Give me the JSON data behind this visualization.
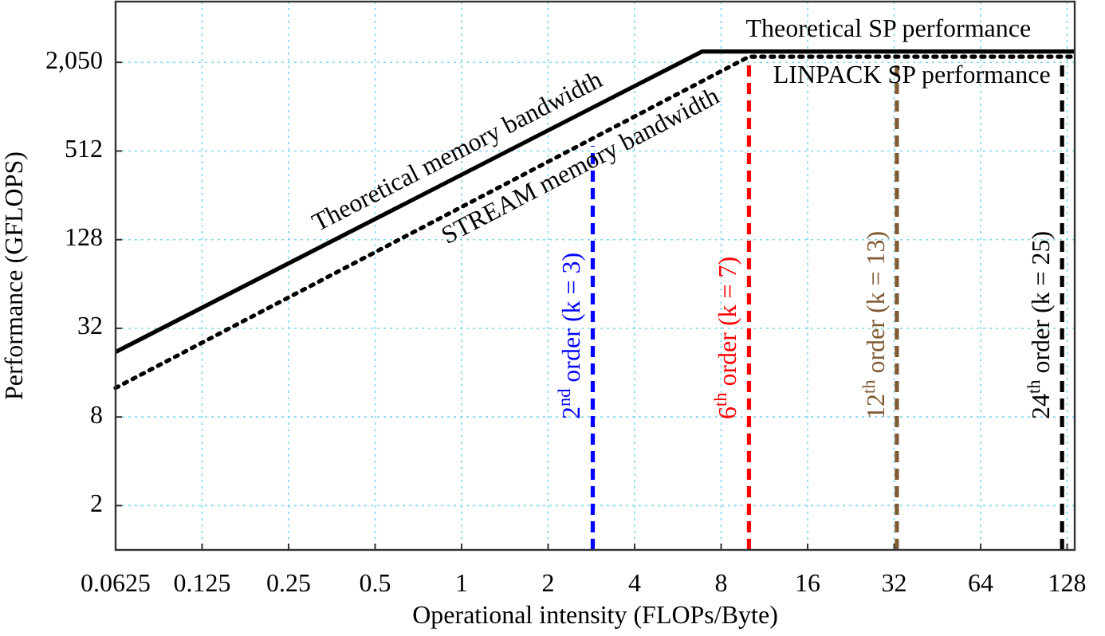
{
  "chart_data": {
    "type": "line",
    "xlabel": "Operational intensity (FLOPs/Byte)",
    "ylabel": "Performance (GFLOPS)",
    "log": "xy",
    "grid": true,
    "legend": false,
    "marker": "none",
    "xlim": [
      0.0625,
      136
    ],
    "xticks": [
      0.0625,
      0.125,
      0.25,
      0.5,
      1,
      2,
      4,
      8,
      16,
      32,
      64,
      128
    ],
    "ylim": [
      1,
      5300
    ],
    "yticks": [
      2,
      8,
      32,
      128,
      512,
      {
        "value": 2050,
        "label": "2,050"
      }
    ],
    "series": [
      {
        "color": "#000000",
        "line_style": "solid",
        "x": [
          0.0625,
          6.87,
          136
        ],
        "values": [
          22.1,
          2430,
          2430
        ]
      },
      {
        "color": "#000000",
        "line_style": "dotted",
        "x": [
          0.0625,
          10,
          136
        ],
        "values": [
          12.6,
          2240,
          2240
        ]
      },
      {
        "name": "2$^{nd}$ order (k = 3)",
        "color": "#0000ff",
        "line_style": "dashed",
        "x": [
          2.86,
          2.86
        ],
        "values": [
          1,
          556
        ]
      },
      {
        "name": "6$^{th}$ order (k = 7)",
        "color": "#ff0000",
        "line_style": "dashed",
        "x": [
          10,
          10
        ],
        "values": [
          1,
          2100
        ]
      },
      {
        "name": "12$^{th}$ order (k = 13)",
        "color": "#7f5a32",
        "line_style": "dashed",
        "x": [
          32.7,
          32.7
        ],
        "values": [
          1,
          2050
        ]
      },
      {
        "name": "24$^{th}$ order (k = 25)",
        "color": "#000000",
        "line_style": "dashed",
        "x": [
          122.9,
          122.9
        ],
        "values": [
          1,
          2050
        ]
      }
    ],
    "annotations": [
      "Theoretical memory bandwidth",
      "STREAM memory bandwidth",
      "Theoretical SP performance",
      "LINPACK SP performance"
    ]
  }
}
